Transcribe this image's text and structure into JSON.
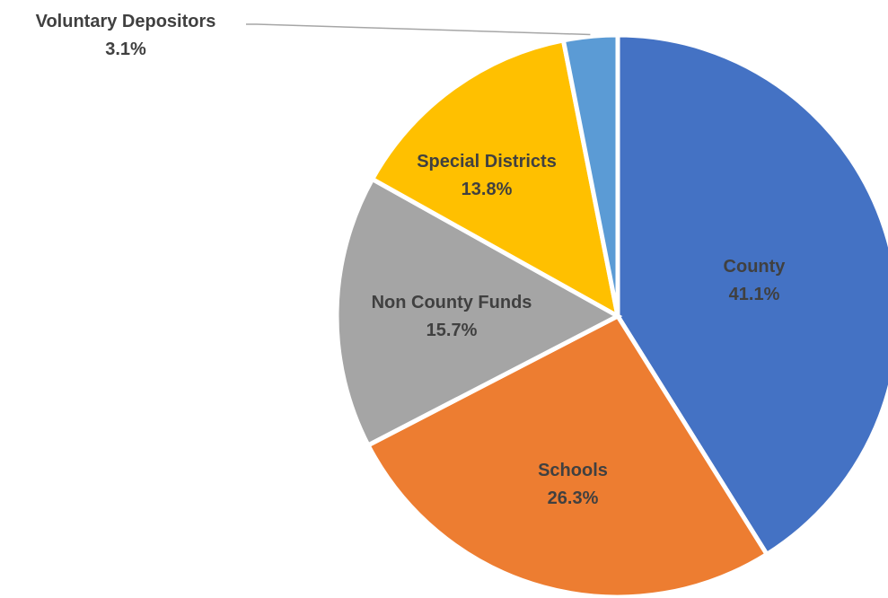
{
  "chart_data": {
    "type": "pie",
    "slices": [
      {
        "label": "County",
        "value": 41.1,
        "display_value": "41.1%",
        "color": "#4472C4"
      },
      {
        "label": "Schools",
        "value": 26.3,
        "display_value": "26.3%",
        "color": "#ED7D31"
      },
      {
        "label": "Non County Funds",
        "value": 15.7,
        "display_value": "15.7%",
        "color": "#A5A5A5"
      },
      {
        "label": "Special Districts",
        "value": 13.8,
        "display_value": "13.8%",
        "color": "#FFC000"
      },
      {
        "label": "Voluntary Depositors",
        "value": 3.1,
        "display_value": "3.1%",
        "color": "#5B9BD5"
      }
    ],
    "start_angle_deg": 0,
    "direction": "clockwise",
    "legend": "none",
    "title": ""
  }
}
